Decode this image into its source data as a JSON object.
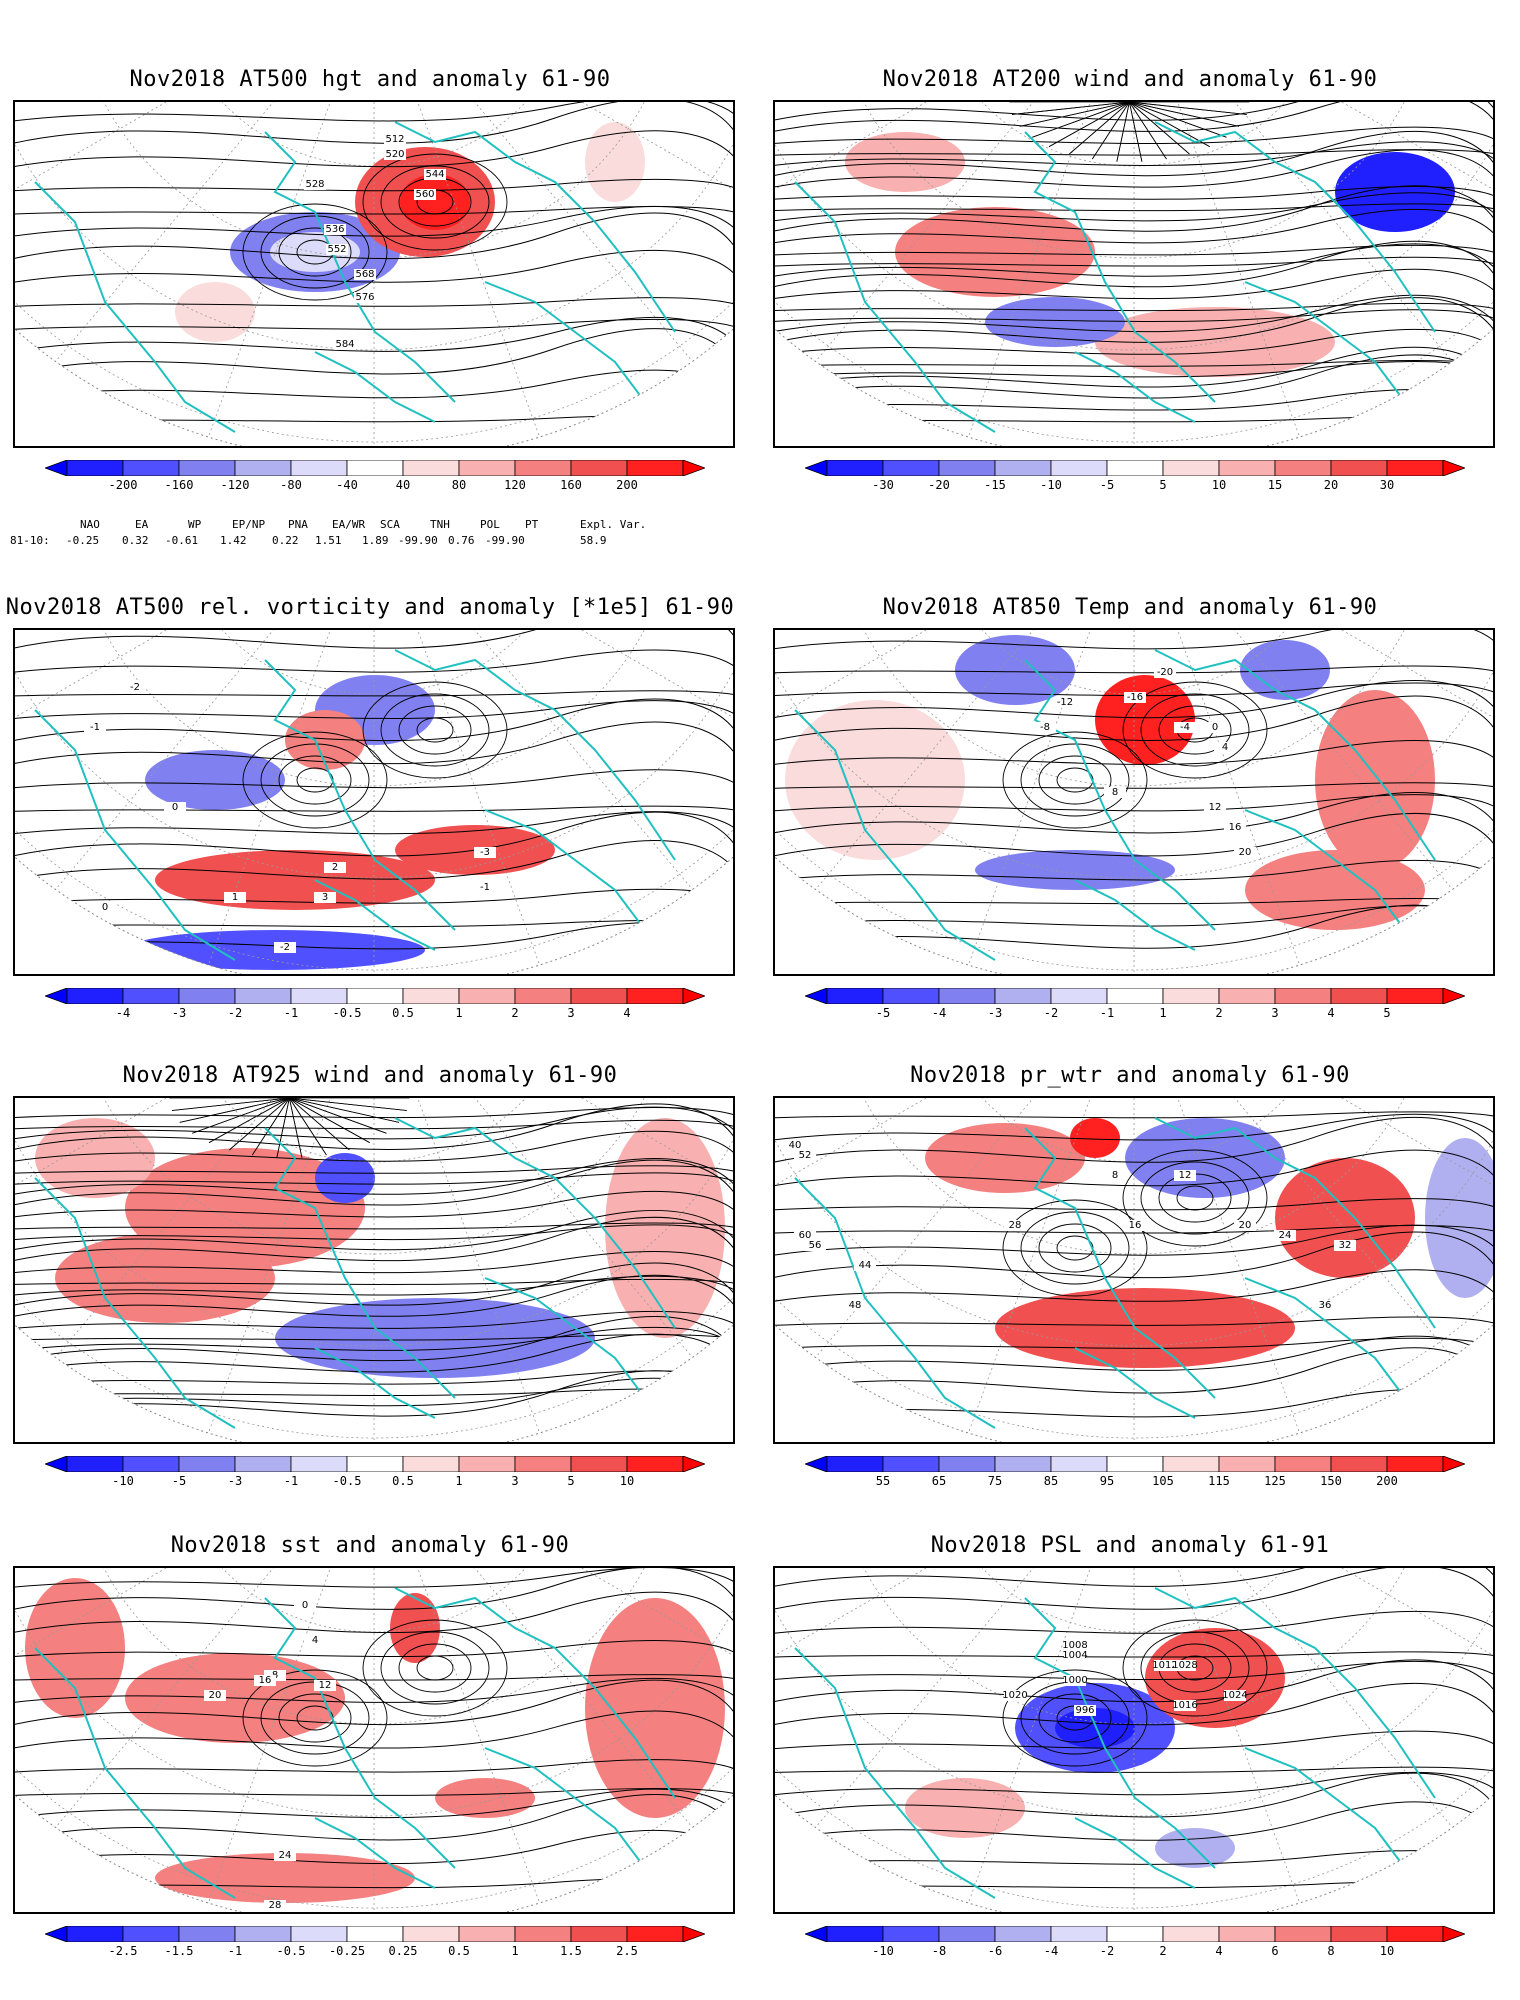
{
  "colorbar_palettes": {
    "neg": [
      "#2020ff",
      "#5050ff",
      "#8080f0",
      "#b0b0f0",
      "#dcdcfa"
    ],
    "pos": [
      "#fadcdc",
      "#f8b0b0",
      "#f48080",
      "#f05050",
      "#ff2020"
    ],
    "neutral": "#ffffff"
  },
  "coastline_color": "#20c0c0",
  "panels": [
    {
      "title": "Nov2018 AT500 hgt and anomaly 61-90",
      "colorbar_ticks": [
        "-200",
        "-160",
        "-120",
        "-80",
        "-40",
        "40",
        "80",
        "120",
        "160",
        "200"
      ],
      "contour_labels": [
        "512",
        "520",
        "528",
        "536",
        "544",
        "552",
        "560",
        "568",
        "576",
        "584"
      ],
      "teleconnection": {
        "headers": [
          "NAO",
          "EA",
          "WP",
          "EP/NP",
          "PNA",
          "EA/WR",
          "SCA",
          "TNH",
          "POL",
          "PT",
          "Expl. Var."
        ],
        "row_label": "81-10:",
        "values": [
          "-0.25",
          "0.32",
          "-0.61",
          "1.42",
          "0.22",
          "1.51",
          "1.89",
          "-99.90",
          "0.76",
          "-99.90",
          "58.9"
        ]
      }
    },
    {
      "title": "Nov2018 AT200 wind and anomaly 61-90",
      "colorbar_ticks": [
        "-30",
        "-20",
        "-15",
        "-10",
        "-5",
        "5",
        "10",
        "15",
        "20",
        "30"
      ],
      "contour_labels": []
    },
    {
      "title": "Nov2018 AT500 rel. vorticity and anomaly [*1e5] 61-90",
      "colorbar_ticks": [
        "-4",
        "-3",
        "-2",
        "-1",
        "-0.5",
        "0.5",
        "1",
        "2",
        "3",
        "4"
      ],
      "contour_labels": [
        "-2",
        "-1",
        "0",
        "1",
        "2",
        "3",
        "-3"
      ]
    },
    {
      "title": "Nov2018 AT850 Temp and anomaly 61-90",
      "colorbar_ticks": [
        "-5",
        "-4",
        "-3",
        "-2",
        "-1",
        "1",
        "2",
        "3",
        "4",
        "5"
      ],
      "contour_labels": [
        "-20",
        "-16",
        "-12",
        "-8",
        "-4",
        "0",
        "4",
        "8",
        "12",
        "16",
        "20"
      ]
    },
    {
      "title": "Nov2018 AT925 wind and anomaly 61-90",
      "colorbar_ticks": [
        "-10",
        "-5",
        "-3",
        "-1",
        "-0.5",
        "0.5",
        "1",
        "3",
        "5",
        "10"
      ],
      "contour_labels": []
    },
    {
      "title": "Nov2018 pr_wtr and anomaly 61-90",
      "colorbar_ticks": [
        "55",
        "65",
        "75",
        "85",
        "95",
        "105",
        "115",
        "125",
        "150",
        "200"
      ],
      "contour_labels": [
        "8",
        "12",
        "16",
        "20",
        "24",
        "28",
        "32",
        "36",
        "40",
        "44",
        "48",
        "52",
        "56",
        "60"
      ]
    },
    {
      "title": "Nov2018 sst and anomaly 61-90",
      "colorbar_ticks": [
        "-2.5",
        "-1.5",
        "-1",
        "-0.5",
        "-0.25",
        "0.25",
        "0.5",
        "1",
        "1.5",
        "2.5"
      ],
      "contour_labels": [
        "0",
        "4",
        "8",
        "12",
        "16",
        "20",
        "24",
        "28"
      ]
    },
    {
      "title": "Nov2018 PSL and anomaly 61-91",
      "colorbar_ticks": [
        "-10",
        "-8",
        "-6",
        "-4",
        "-2",
        "2",
        "4",
        "6",
        "8",
        "10"
      ],
      "contour_labels": [
        "996",
        "1000",
        "1004",
        "1008",
        "1012",
        "1016",
        "1020",
        "1024",
        "1028"
      ]
    }
  ]
}
